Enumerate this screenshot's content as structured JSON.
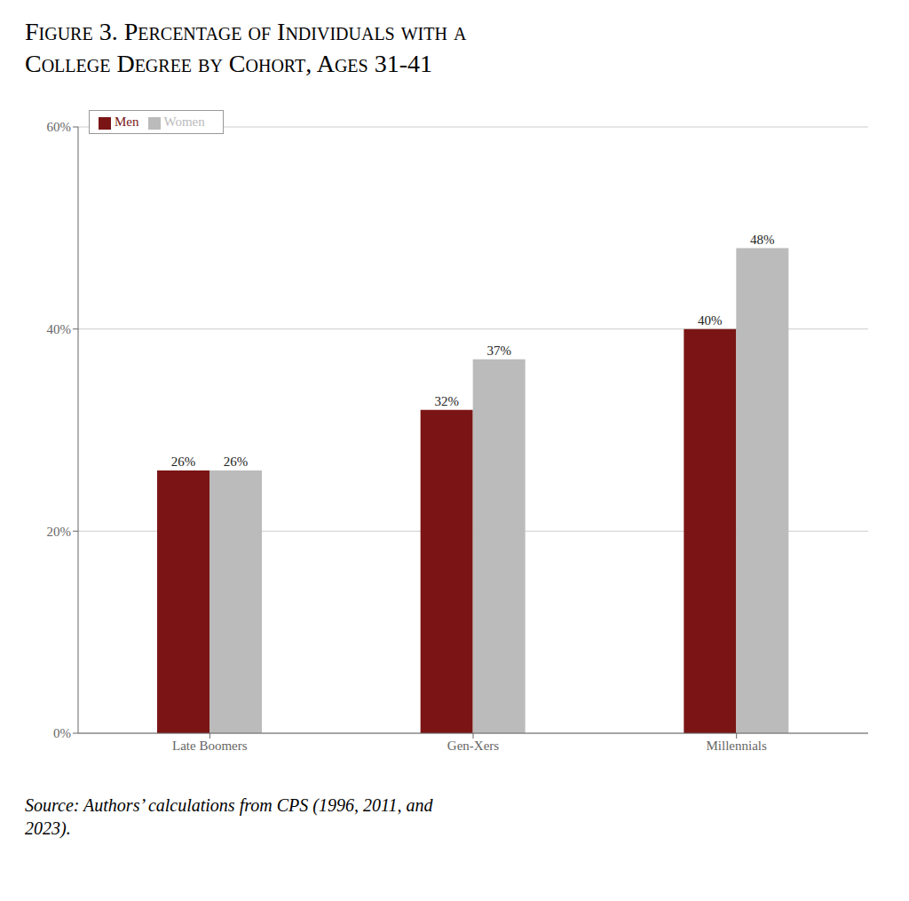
{
  "chart_data": {
    "type": "bar",
    "title": "Figure 3. Percentage of Individuals with a\nCollege Degree by Cohort, Ages 31-41",
    "annotations": [
      "Source: Authors’ calculations from CPS (1996, 2011, and\n2023)."
    ],
    "categories": [
      "Late Boomers",
      "Gen-Xers",
      "Millennials"
    ],
    "series": [
      {
        "name": "Men",
        "color": "#7B1515",
        "values": [
          26,
          32,
          40
        ],
        "value_labels": [
          "26%",
          "32%",
          "40%"
        ]
      },
      {
        "name": "Women",
        "color": "#BBBBBB",
        "values": [
          26,
          37,
          48
        ],
        "value_labels": [
          "26%",
          "37%",
          "48%"
        ]
      }
    ],
    "ylim": [
      0,
      60
    ],
    "yticks": [
      {
        "value": 0,
        "label": "0%"
      },
      {
        "value": 20,
        "label": "20%"
      },
      {
        "value": 40,
        "label": "40%"
      },
      {
        "value": 60,
        "label": "60%"
      }
    ],
    "grid": true,
    "legend": "upper left",
    "data_labels": true
  }
}
